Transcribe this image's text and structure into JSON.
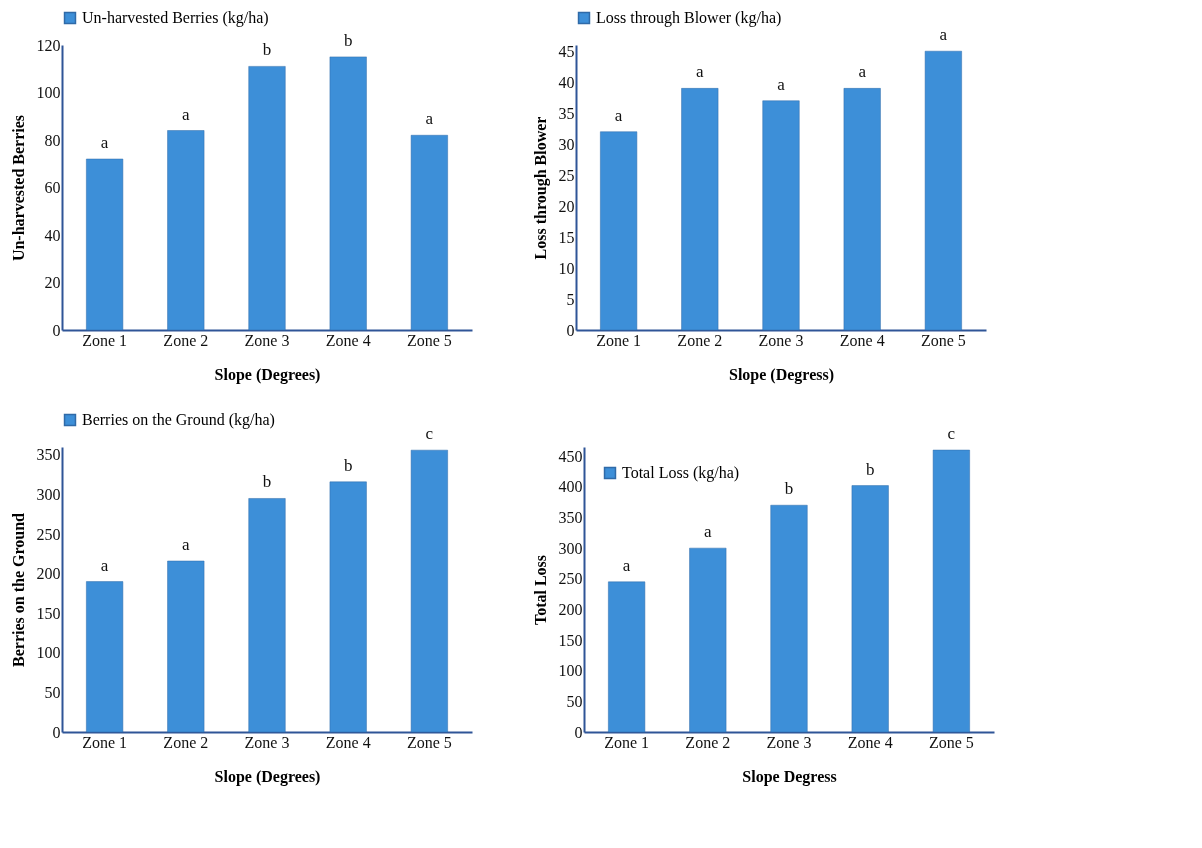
{
  "chart_data": [
    {
      "type": "bar",
      "xlabel": "Slope (Degrees)",
      "ylabel": "Un-harvested Berries",
      "categories": [
        "Zone 1",
        "Zone 2",
        "Zone 3",
        "Zone 4",
        "Zone 5"
      ],
      "series": [
        {
          "name": "Un-harvested Berries (kg/ha)",
          "color": "#3d8fd8",
          "values": [
            72,
            84,
            111,
            115,
            82
          ]
        }
      ],
      "ylim": [
        0,
        120
      ],
      "yticks": [
        0,
        20,
        40,
        60,
        80,
        100,
        120
      ],
      "legend": "top",
      "annotations": [
        {
          "text": "a",
          "x": "Zone 1",
          "y": 72
        },
        {
          "text": "a",
          "x": "Zone 2",
          "y": 84
        },
        {
          "text": "b",
          "x": "Zone 3",
          "y": 111
        },
        {
          "text": "b",
          "x": "Zone 4",
          "y": 115
        },
        {
          "text": "a",
          "x": "Zone 5",
          "y": 82
        }
      ]
    },
    {
      "type": "bar",
      "xlabel": "Slope (Degress)",
      "ylabel": "Loss through Blower",
      "categories": [
        "Zone 1",
        "Zone 2",
        "Zone 3",
        "Zone 4",
        "Zone 5"
      ],
      "series": [
        {
          "name": "Loss through Blower (kg/ha)",
          "color": "#3d8fd8",
          "values": [
            32,
            39,
            37,
            39,
            45
          ]
        }
      ],
      "ylim": [
        0,
        46
      ],
      "yticks": [
        0,
        5,
        10,
        15,
        20,
        25,
        30,
        35,
        40,
        45
      ],
      "legend": "top",
      "annotations": [
        {
          "text": "a",
          "x": "Zone 1",
          "y": 32
        },
        {
          "text": "a",
          "x": "Zone 2",
          "y": 39
        },
        {
          "text": "a",
          "x": "Zone 3",
          "y": 37
        },
        {
          "text": "a",
          "x": "Zone 4",
          "y": 39
        },
        {
          "text": "a",
          "x": "Zone 5",
          "y": 45
        }
      ]
    },
    {
      "type": "bar",
      "xlabel": "Slope (Degrees)",
      "ylabel": "Berries on the Ground",
      "categories": [
        "Zone 1",
        "Zone 2",
        "Zone 3",
        "Zone 4",
        "Zone 5"
      ],
      "series": [
        {
          "name": "Berries on the Ground (kg/ha)",
          "color": "#3d8fd8",
          "values": [
            190,
            216,
            295,
            316,
            356
          ]
        }
      ],
      "ylim": [
        0,
        360
      ],
      "yticks": [
        0,
        50,
        100,
        150,
        200,
        250,
        300,
        350
      ],
      "legend": "top",
      "annotations": [
        {
          "text": "a",
          "x": "Zone 1",
          "y": 190
        },
        {
          "text": "a",
          "x": "Zone 2",
          "y": 216
        },
        {
          "text": "b",
          "x": "Zone 3",
          "y": 295
        },
        {
          "text": "b",
          "x": "Zone 4",
          "y": 316
        },
        {
          "text": "c",
          "x": "Zone 5",
          "y": 356
        }
      ]
    },
    {
      "type": "bar",
      "xlabel": "Slope Degress",
      "ylabel": "Total Loss",
      "categories": [
        "Zone 1",
        "Zone 2",
        "Zone 3",
        "Zone 4",
        "Zone 5"
      ],
      "series": [
        {
          "name": "Total Loss (kg/ha)",
          "color": "#3d8fd8",
          "values": [
            245,
            300,
            370,
            402,
            460
          ]
        }
      ],
      "ylim": [
        0,
        465
      ],
      "yticks": [
        0,
        50,
        100,
        150,
        200,
        250,
        300,
        350,
        400,
        450
      ],
      "legend": "top left",
      "annotations": [
        {
          "text": "a",
          "x": "Zone 1",
          "y": 245
        },
        {
          "text": "a",
          "x": "Zone 2",
          "y": 300
        },
        {
          "text": "b",
          "x": "Zone 3",
          "y": 370
        },
        {
          "text": "b",
          "x": "Zone 4",
          "y": 402
        },
        {
          "text": "c",
          "x": "Zone 5",
          "y": 460
        }
      ]
    }
  ]
}
